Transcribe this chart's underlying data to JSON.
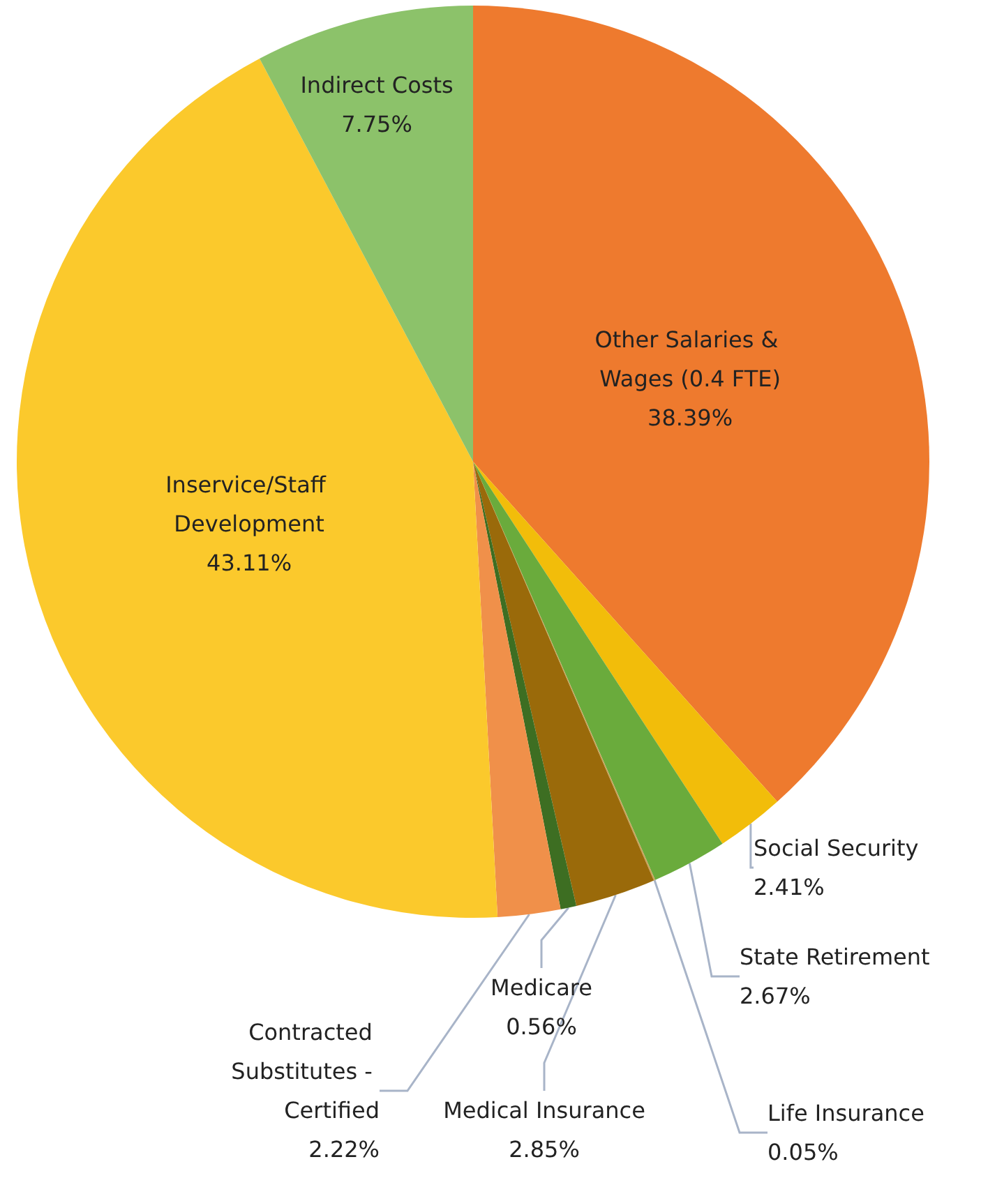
{
  "chart_data": {
    "type": "pie",
    "categories": [
      "Other Salaries & Wages (0.4 FTE)",
      "Social Security",
      "State Retirement",
      "Life Insurance",
      "Medical Insurance",
      "Medicare",
      "Contracted Substitutes - Certified",
      "Inservice/Staff Development",
      "Indirect Costs"
    ],
    "values": [
      38.39,
      2.41,
      2.67,
      0.05,
      2.85,
      0.56,
      2.22,
      43.11,
      7.75
    ],
    "value_labels": [
      "38.39%",
      "2.41%",
      "2.67%",
      "0.05%",
      "2.85%",
      "0.56%",
      "2.22%",
      "43.11%",
      "7.75%"
    ],
    "colors": [
      "#ee7a2e",
      "#f2bd0a",
      "#6aab3c",
      "#c9a25a",
      "#9a6a0a",
      "#3d6e22",
      "#f0904a",
      "#fbc92c",
      "#8cc26a"
    ],
    "legend": false
  }
}
